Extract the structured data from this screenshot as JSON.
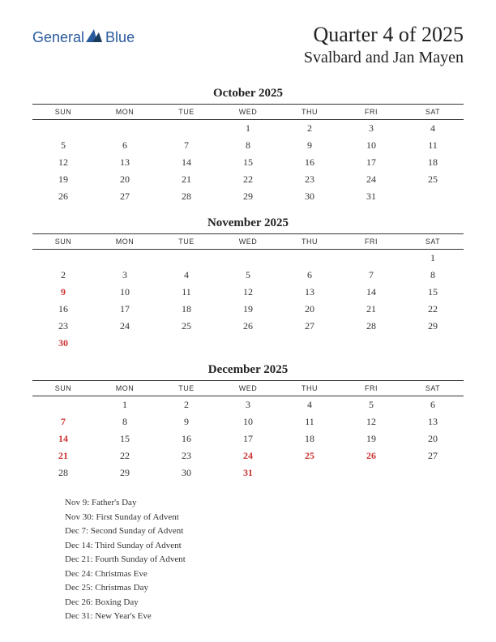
{
  "logo": {
    "text": "General",
    "accent": "Blue"
  },
  "title": "Quarter 4 of 2025",
  "region": "Svalbard and Jan Mayen",
  "day_headers": [
    "SUN",
    "MON",
    "TUE",
    "WED",
    "THU",
    "FRI",
    "SAT"
  ],
  "colors": {
    "holiday": "#cc3333",
    "text": "#333333",
    "logo_blue": "#2a5a9e",
    "logo_dark": "#1a3a5e",
    "background": "#ffffff"
  },
  "months": [
    {
      "name": "October 2025",
      "weeks": [
        [
          null,
          null,
          null,
          {
            "d": 1
          },
          {
            "d": 2
          },
          {
            "d": 3
          },
          {
            "d": 4
          }
        ],
        [
          {
            "d": 5
          },
          {
            "d": 6
          },
          {
            "d": 7
          },
          {
            "d": 8
          },
          {
            "d": 9
          },
          {
            "d": 10
          },
          {
            "d": 11
          }
        ],
        [
          {
            "d": 12
          },
          {
            "d": 13
          },
          {
            "d": 14
          },
          {
            "d": 15
          },
          {
            "d": 16
          },
          {
            "d": 17
          },
          {
            "d": 18
          }
        ],
        [
          {
            "d": 19
          },
          {
            "d": 20
          },
          {
            "d": 21
          },
          {
            "d": 22
          },
          {
            "d": 23
          },
          {
            "d": 24
          },
          {
            "d": 25
          }
        ],
        [
          {
            "d": 26
          },
          {
            "d": 27
          },
          {
            "d": 28
          },
          {
            "d": 29
          },
          {
            "d": 30
          },
          {
            "d": 31
          },
          null
        ]
      ]
    },
    {
      "name": "November 2025",
      "weeks": [
        [
          null,
          null,
          null,
          null,
          null,
          null,
          {
            "d": 1
          }
        ],
        [
          {
            "d": 2
          },
          {
            "d": 3
          },
          {
            "d": 4
          },
          {
            "d": 5
          },
          {
            "d": 6
          },
          {
            "d": 7
          },
          {
            "d": 8
          }
        ],
        [
          {
            "d": 9,
            "h": true
          },
          {
            "d": 10
          },
          {
            "d": 11
          },
          {
            "d": 12
          },
          {
            "d": 13
          },
          {
            "d": 14
          },
          {
            "d": 15
          }
        ],
        [
          {
            "d": 16
          },
          {
            "d": 17
          },
          {
            "d": 18
          },
          {
            "d": 19
          },
          {
            "d": 20
          },
          {
            "d": 21
          },
          {
            "d": 22
          }
        ],
        [
          {
            "d": 23
          },
          {
            "d": 24
          },
          {
            "d": 25
          },
          {
            "d": 26
          },
          {
            "d": 27
          },
          {
            "d": 28
          },
          {
            "d": 29
          }
        ],
        [
          {
            "d": 30,
            "h": true
          },
          null,
          null,
          null,
          null,
          null,
          null
        ]
      ]
    },
    {
      "name": "December 2025",
      "weeks": [
        [
          null,
          {
            "d": 1
          },
          {
            "d": 2
          },
          {
            "d": 3
          },
          {
            "d": 4
          },
          {
            "d": 5
          },
          {
            "d": 6
          }
        ],
        [
          {
            "d": 7,
            "h": true
          },
          {
            "d": 8
          },
          {
            "d": 9
          },
          {
            "d": 10
          },
          {
            "d": 11
          },
          {
            "d": 12
          },
          {
            "d": 13
          }
        ],
        [
          {
            "d": 14,
            "h": true
          },
          {
            "d": 15
          },
          {
            "d": 16
          },
          {
            "d": 17
          },
          {
            "d": 18
          },
          {
            "d": 19
          },
          {
            "d": 20
          }
        ],
        [
          {
            "d": 21,
            "h": true
          },
          {
            "d": 22
          },
          {
            "d": 23
          },
          {
            "d": 24,
            "h": true
          },
          {
            "d": 25,
            "h": true
          },
          {
            "d": 26,
            "h": true
          },
          {
            "d": 27
          }
        ],
        [
          {
            "d": 28
          },
          {
            "d": 29
          },
          {
            "d": 30
          },
          {
            "d": 31,
            "h": true
          },
          null,
          null,
          null
        ]
      ]
    }
  ],
  "holidays": [
    "Nov 9: Father's Day",
    "Nov 30: First Sunday of Advent",
    "Dec 7: Second Sunday of Advent",
    "Dec 14: Third Sunday of Advent",
    "Dec 21: Fourth Sunday of Advent",
    "Dec 24: Christmas Eve",
    "Dec 25: Christmas Day",
    "Dec 26: Boxing Day",
    "Dec 31: New Year's Eve"
  ]
}
